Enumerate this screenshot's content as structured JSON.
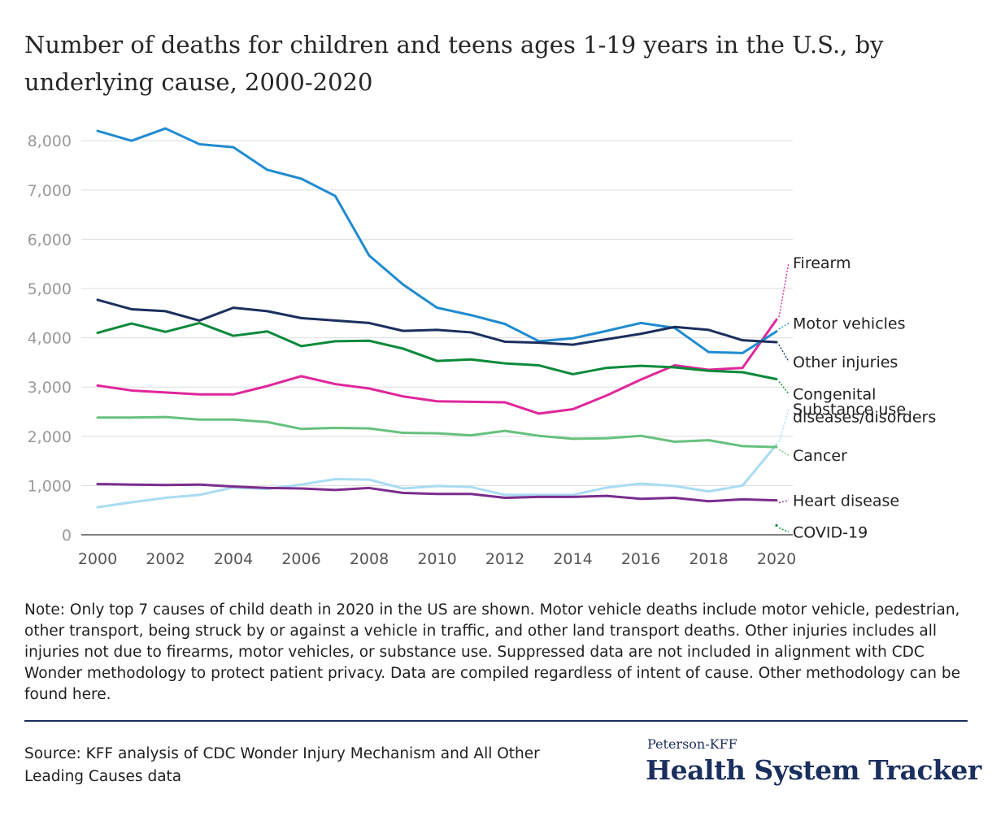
{
  "title": "Number of deaths for children and teens ages 1-19 years in the U.S., by underlying cause, 2000-2020",
  "note": "Note: Only top 7 causes of child death in 2020 in the US are shown. Motor vehicle deaths include motor vehicle, pedestrian, other transport, being struck by or against a vehicle in traffic, and other land transport deaths. Other injuries includes all injuries not due to firearms, motor vehicles, or substance use. Suppressed data are not included in alignment with CDC Wonder methodology to protect patient privacy. Data are compiled regardless of intent of cause. Other methodology can be found here.",
  "source": "Source: KFF analysis of CDC Wonder Injury Mechanism and All Other Leading Causes data",
  "brand": {
    "small": "Peterson-KFF",
    "big": "Health System Tracker"
  },
  "chart_data": {
    "type": "line",
    "title": "Number of deaths for children and teens ages 1-19 years in the U.S., by underlying cause, 2000-2020",
    "x": [
      2000,
      2001,
      2002,
      2003,
      2004,
      2005,
      2006,
      2007,
      2008,
      2009,
      2010,
      2011,
      2012,
      2013,
      2014,
      2015,
      2016,
      2017,
      2018,
      2019,
      2020
    ],
    "xticks": [
      "2000",
      "2002",
      "2004",
      "2006",
      "2008",
      "2010",
      "2012",
      "2014",
      "2016",
      "2018",
      "2020"
    ],
    "yticks": [
      "0",
      "1,000",
      "2,000",
      "3,000",
      "4,000",
      "5,000",
      "6,000",
      "7,000",
      "8,000"
    ],
    "ylim": [
      0,
      8300
    ],
    "grid": true,
    "series": [
      {
        "name": "Firearm",
        "color": "#e0269b",
        "values": [
          3030,
          2930,
          2890,
          2850,
          2850,
          3020,
          3220,
          3060,
          2970,
          2810,
          2710,
          2700,
          2690,
          2460,
          2550,
          2830,
          3150,
          3440,
          3350,
          3390,
          4370
        ]
      },
      {
        "name": "Motor vehicles",
        "color": "#1f8bd1",
        "values": [
          8200,
          8000,
          8250,
          7930,
          7870,
          7410,
          7230,
          6880,
          5670,
          5080,
          4610,
          4460,
          4280,
          3930,
          3990,
          4140,
          4300,
          4200,
          3710,
          3690,
          4130
        ]
      },
      {
        "name": "Other injuries",
        "color": "#1b2f5e",
        "values": [
          4770,
          4580,
          4540,
          4350,
          4610,
          4540,
          4400,
          4350,
          4300,
          4140,
          4160,
          4110,
          3920,
          3900,
          3860,
          3970,
          4080,
          4220,
          4160,
          3950,
          3910
        ]
      },
      {
        "name": "Congenital diseases/disorders",
        "color": "#0a8a3a",
        "values": [
          4100,
          4290,
          4120,
          4300,
          4040,
          4130,
          3830,
          3930,
          3940,
          3780,
          3530,
          3560,
          3480,
          3440,
          3260,
          3390,
          3430,
          3400,
          3330,
          3300,
          3160
        ]
      },
      {
        "name": "Substance use",
        "color": "#a9dcf3",
        "values": [
          560,
          660,
          750,
          810,
          960,
          930,
          1020,
          1130,
          1120,
          940,
          990,
          970,
          810,
          810,
          810,
          960,
          1040,
          990,
          880,
          1000,
          1830
        ]
      },
      {
        "name": "Cancer",
        "color": "#66c17c",
        "values": [
          2380,
          2380,
          2390,
          2340,
          2340,
          2290,
          2150,
          2170,
          2160,
          2070,
          2060,
          2020,
          2110,
          2010,
          1950,
          1960,
          2010,
          1890,
          1920,
          1800,
          1780
        ]
      },
      {
        "name": "Heart disease",
        "color": "#7b2d8e",
        "values": [
          1030,
          1020,
          1010,
          1020,
          980,
          950,
          940,
          910,
          950,
          850,
          830,
          830,
          750,
          770,
          770,
          790,
          730,
          750,
          680,
          720,
          700
        ]
      },
      {
        "name": "COVID-19",
        "color": "#0a8a3a",
        "values": [
          null,
          null,
          null,
          null,
          null,
          null,
          null,
          null,
          null,
          null,
          null,
          null,
          null,
          null,
          null,
          null,
          null,
          null,
          null,
          null,
          190
        ]
      }
    ],
    "legend": "right"
  }
}
